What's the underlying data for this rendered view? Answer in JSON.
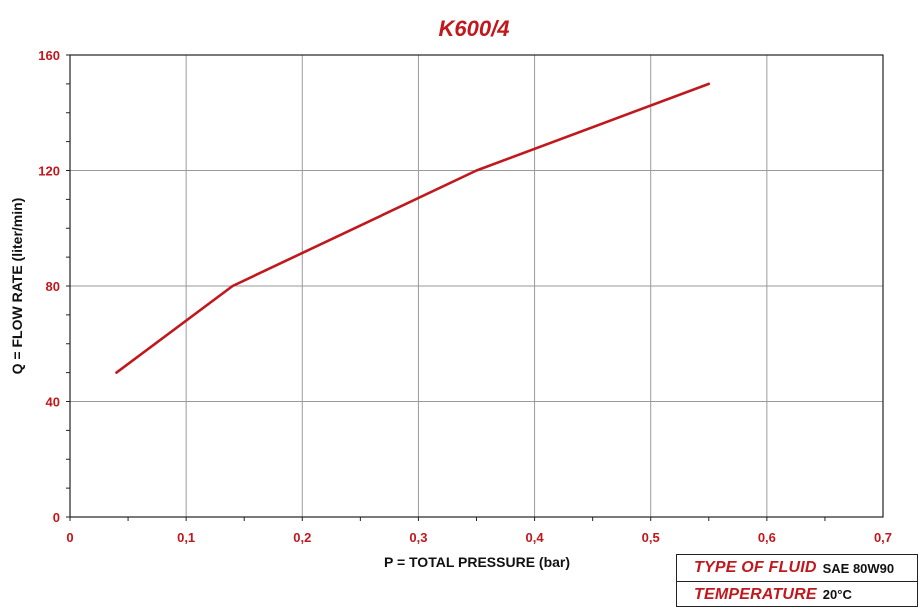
{
  "chart_data": {
    "type": "line",
    "title": "K600/4",
    "xlabel": "P = TOTAL PRESSURE (bar)",
    "ylabel": "Q = FLOW RATE (liter/min)",
    "xlim": [
      0,
      0.7
    ],
    "ylim": [
      0,
      160
    ],
    "x_ticks": [
      "0",
      "0,1",
      "0,2",
      "0,3",
      "0,4",
      "0,5",
      "0,6",
      "0,7"
    ],
    "y_ticks": [
      "0",
      "40",
      "80",
      "120",
      "160"
    ],
    "grid": true,
    "series": [
      {
        "x": [
          0.04,
          0.14,
          0.35,
          0.55
        ],
        "y": [
          50,
          80,
          120,
          150
        ],
        "color": "#c0181c"
      }
    ]
  },
  "legend_table": {
    "rows": [
      {
        "key": "TYPE OF FLUID",
        "value": "SAE 80W90"
      },
      {
        "key": "TEMPERATURE",
        "value": "20°C"
      }
    ]
  },
  "colors": {
    "accent": "#c0181c",
    "grid": "#9a9a9a",
    "axis_text": "#111111"
  }
}
